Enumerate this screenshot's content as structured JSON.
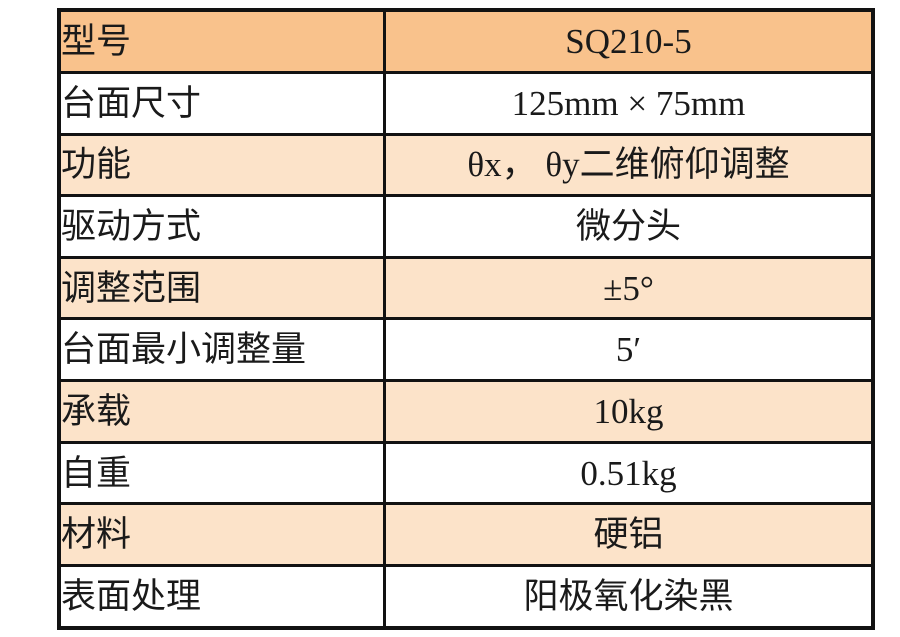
{
  "page": {
    "background": "#ffffff"
  },
  "table": {
    "colors": {
      "header_row_bg": "#f9c28c",
      "alt_row_bg": "#fce3c9",
      "white_row_bg": "#ffffff",
      "border": "#121212",
      "text": "#1a1a1a"
    },
    "rows": [
      {
        "label": "型号",
        "value": "SQ210-5",
        "bg": "header"
      },
      {
        "label": "台面尺寸",
        "value": "125mm × 75mm",
        "bg": "white"
      },
      {
        "label": "功能",
        "value": "θx， θy二维俯仰调整",
        "bg": "alt"
      },
      {
        "label": "驱动方式",
        "value": "微分头",
        "bg": "white"
      },
      {
        "label": "调整范围",
        "value": "±5°",
        "bg": "alt"
      },
      {
        "label": "台面最小调整量",
        "value": "5′",
        "bg": "white"
      },
      {
        "label": "承载",
        "value": "10kg",
        "bg": "alt"
      },
      {
        "label": "自重",
        "value": "0.51kg",
        "bg": "white"
      },
      {
        "label": "材料",
        "value": "硬铝",
        "bg": "alt"
      },
      {
        "label": "表面处理",
        "value": "阳极氧化染黑",
        "bg": "white"
      }
    ]
  }
}
